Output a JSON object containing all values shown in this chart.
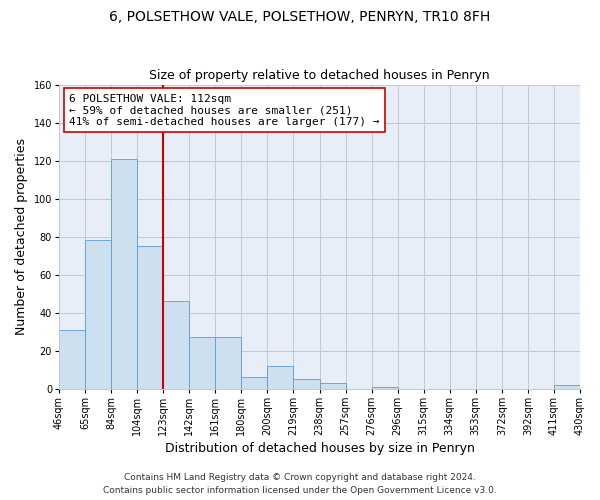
{
  "title": "6, POLSETHOW VALE, POLSETHOW, PENRYN, TR10 8FH",
  "subtitle": "Size of property relative to detached houses in Penryn",
  "xlabel": "Distribution of detached houses by size in Penryn",
  "ylabel": "Number of detached properties",
  "bar_data": [
    31,
    78,
    121,
    75,
    46,
    27,
    27,
    6,
    12,
    5,
    3,
    0,
    1,
    0,
    0,
    0,
    0,
    0,
    0,
    2
  ],
  "x_labels": [
    "46sqm",
    "65sqm",
    "84sqm",
    "104sqm",
    "123sqm",
    "142sqm",
    "161sqm",
    "180sqm",
    "200sqm",
    "219sqm",
    "238sqm",
    "257sqm",
    "276sqm",
    "296sqm",
    "315sqm",
    "334sqm",
    "353sqm",
    "372sqm",
    "392sqm",
    "411sqm",
    "430sqm"
  ],
  "bar_color": "#cce0f0",
  "bar_edge_color": "#5b9bd5",
  "property_line_color": "#cc0000",
  "annotation_text": "6 POLSETHOW VALE: 112sqm\n← 59% of detached houses are smaller (251)\n41% of semi-detached houses are larger (177) →",
  "annotation_box_edge_color": "#cc0000",
  "annotation_box_fill": "#ffffff",
  "ylim": [
    0,
    160
  ],
  "yticks": [
    0,
    20,
    40,
    60,
    80,
    100,
    120,
    140,
    160
  ],
  "footer1": "Contains HM Land Registry data © Crown copyright and database right 2024.",
  "footer2": "Contains public sector information licensed under the Open Government Licence v3.0.",
  "plot_bg_color": "#e8eef8",
  "fig_bg_color": "#ffffff",
  "grid_color": "#c0c8d8",
  "title_fontsize": 10,
  "subtitle_fontsize": 9,
  "axis_label_fontsize": 9,
  "tick_fontsize": 7,
  "annotation_fontsize": 8,
  "footer_fontsize": 6.5
}
